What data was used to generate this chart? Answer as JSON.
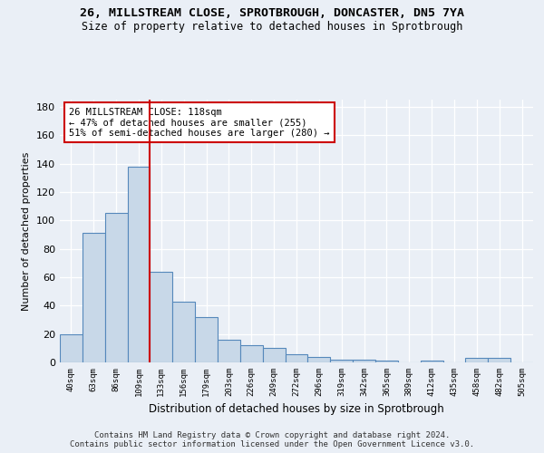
{
  "title1": "26, MILLSTREAM CLOSE, SPROTBROUGH, DONCASTER, DN5 7YA",
  "title2": "Size of property relative to detached houses in Sprotbrough",
  "xlabel": "Distribution of detached houses by size in Sprotbrough",
  "ylabel": "Number of detached properties",
  "bar_labels": [
    "40sqm",
    "63sqm",
    "86sqm",
    "109sqm",
    "133sqm",
    "156sqm",
    "179sqm",
    "203sqm",
    "226sqm",
    "249sqm",
    "272sqm",
    "296sqm",
    "319sqm",
    "342sqm",
    "365sqm",
    "389sqm",
    "412sqm",
    "435sqm",
    "458sqm",
    "482sqm",
    "505sqm"
  ],
  "bar_values": [
    20,
    91,
    105,
    138,
    64,
    43,
    32,
    16,
    12,
    10,
    6,
    4,
    2,
    2,
    1,
    0,
    1,
    0,
    3,
    3,
    0
  ],
  "bar_color": "#c8d8e8",
  "bar_edge_color": "#5588bb",
  "background_color": "#eaeff6",
  "plot_bg_color": "#eaeff6",
  "grid_color": "#ffffff",
  "red_line_x": 3.5,
  "annotation_box_text": "26 MILLSTREAM CLOSE: 118sqm\n← 47% of detached houses are smaller (255)\n51% of semi-detached houses are larger (280) →",
  "annotation_box_color": "#ffffff",
  "annotation_box_edge_color": "#cc0000",
  "footer_text": "Contains HM Land Registry data © Crown copyright and database right 2024.\nContains public sector information licensed under the Open Government Licence v3.0.",
  "ylim": [
    0,
    185
  ],
  "yticks": [
    0,
    20,
    40,
    60,
    80,
    100,
    120,
    140,
    160,
    180
  ]
}
